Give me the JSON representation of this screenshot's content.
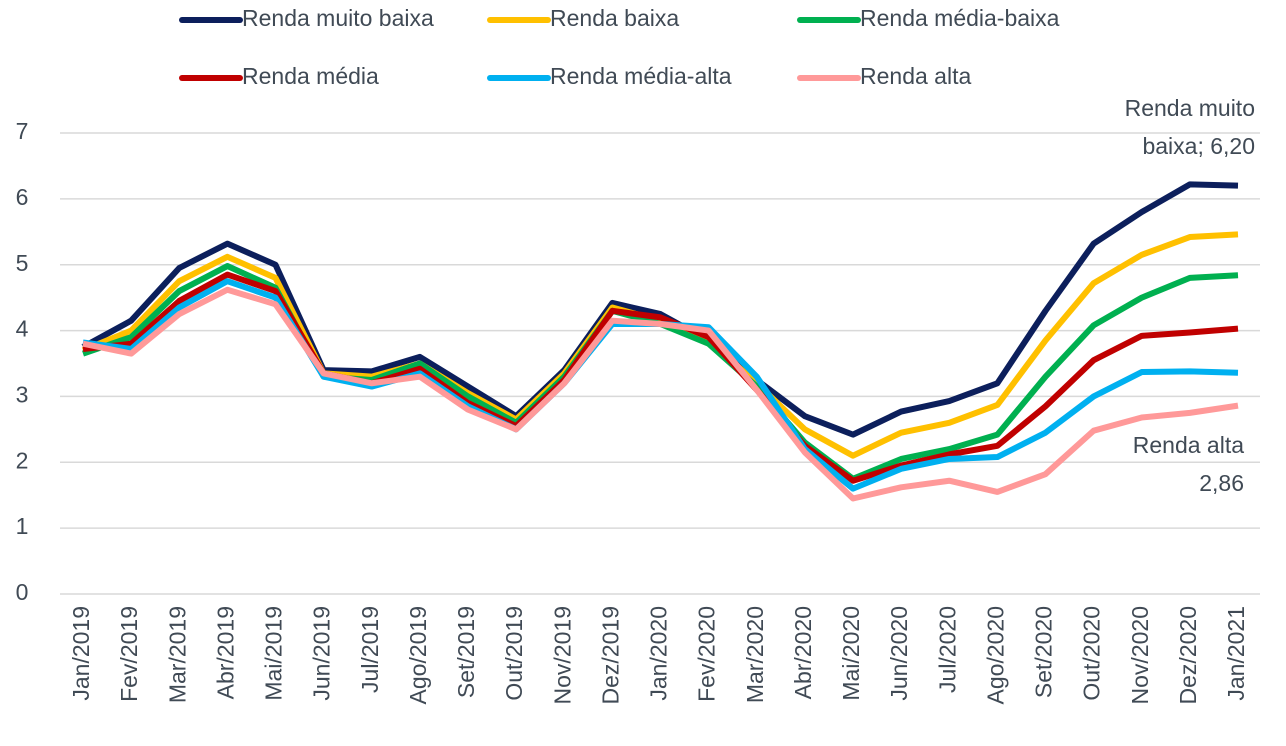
{
  "chart_data": {
    "type": "line",
    "categories": [
      "Jan/2019",
      "Fev/2019",
      "Mar/2019",
      "Abr/2019",
      "Mai/2019",
      "Jun/2019",
      "Jul/2019",
      "Ago/2019",
      "Set/2019",
      "Out/2019",
      "Nov/2019",
      "Dez/2019",
      "Jan/2020",
      "Fev/2020",
      "Mar/2020",
      "Abr/2020",
      "Mai/2020",
      "Jun/2020",
      "Jul/2020",
      "Ago/2020",
      "Set/2020",
      "Out/2020",
      "Nov/2020",
      "Dez/2020",
      "Jan/2021"
    ],
    "series": [
      {
        "name": "Renda muito baixa",
        "color": "#0c1f5c",
        "values": [
          3.75,
          4.15,
          4.95,
          5.32,
          5.0,
          3.4,
          3.38,
          3.6,
          3.15,
          2.7,
          3.4,
          4.42,
          4.25,
          3.85,
          3.25,
          2.7,
          2.42,
          2.77,
          2.93,
          3.2,
          4.3,
          5.32,
          5.8,
          6.22,
          6.2
        ]
      },
      {
        "name": "Renda baixa",
        "color": "#ffc000",
        "values": [
          3.7,
          4.0,
          4.75,
          5.12,
          4.8,
          3.35,
          3.3,
          3.5,
          3.05,
          2.65,
          3.35,
          4.35,
          4.15,
          3.85,
          3.2,
          2.5,
          2.1,
          2.45,
          2.6,
          2.87,
          3.85,
          4.72,
          5.15,
          5.42,
          5.46
        ]
      },
      {
        "name": "Renda média-baixa",
        "color": "#00b050",
        "values": [
          3.65,
          3.9,
          4.6,
          4.98,
          4.65,
          3.3,
          3.25,
          3.5,
          3.0,
          2.6,
          3.3,
          4.3,
          4.1,
          3.8,
          3.15,
          2.3,
          1.75,
          2.05,
          2.2,
          2.42,
          3.3,
          4.08,
          4.5,
          4.8,
          4.84
        ]
      },
      {
        "name": "Renda média",
        "color": "#c00000",
        "values": [
          3.72,
          3.8,
          4.45,
          4.85,
          4.6,
          3.35,
          3.2,
          3.42,
          2.9,
          2.55,
          3.25,
          4.3,
          4.2,
          3.9,
          3.1,
          2.25,
          1.72,
          1.95,
          2.12,
          2.25,
          2.85,
          3.55,
          3.92,
          3.97,
          4.03
        ]
      },
      {
        "name": "Renda média-alta",
        "color": "#00b0f0",
        "values": [
          3.82,
          3.72,
          4.35,
          4.75,
          4.5,
          3.3,
          3.15,
          3.35,
          2.85,
          2.5,
          3.2,
          4.1,
          4.1,
          4.05,
          3.3,
          2.2,
          1.6,
          1.9,
          2.05,
          2.08,
          2.45,
          3.0,
          3.37,
          3.38,
          3.36
        ]
      },
      {
        "name": "Renda alta",
        "color": "#ff9999",
        "values": [
          3.8,
          3.65,
          4.25,
          4.62,
          4.4,
          3.35,
          3.2,
          3.3,
          2.8,
          2.5,
          3.2,
          4.15,
          4.1,
          4.0,
          3.1,
          2.15,
          1.45,
          1.62,
          1.72,
          1.55,
          1.82,
          2.48,
          2.68,
          2.75,
          2.86
        ]
      }
    ],
    "ylim": [
      0,
      7
    ],
    "yticks": [
      0,
      1,
      2,
      3,
      4,
      5,
      6,
      7
    ],
    "grid": true,
    "annotations": [
      {
        "lines": [
          "Renda muito",
          "baixa; 6,20"
        ]
      },
      {
        "lines": [
          "Renda alta",
          "2,86"
        ]
      }
    ]
  }
}
